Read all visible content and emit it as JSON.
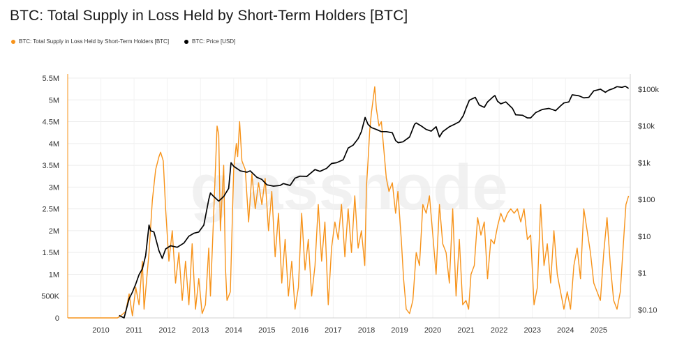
{
  "title": "BTC: Total Supply in Loss Held by Short-Term Holders [BTC]",
  "legend": [
    {
      "label": "BTC: Total Supply in Loss Held by Short-Term Holders [BTC]",
      "color": "#f7931a"
    },
    {
      "label": "BTC: Price [USD]",
      "color": "#000000"
    }
  ],
  "watermark": "glassnode",
  "chart_data": {
    "type": "line",
    "x_axis": {
      "labels": [
        "2010",
        "2011",
        "2012",
        "2013",
        "2014",
        "2015",
        "2016",
        "2017",
        "2018",
        "2019",
        "2020",
        "2021",
        "2022",
        "2023",
        "2024",
        "2025"
      ],
      "range": [
        2009.0,
        2025.95
      ]
    },
    "y_left": {
      "labels": [
        "0",
        "500K",
        "1M",
        "1.5M",
        "2M",
        "2.5M",
        "3M",
        "3.5M",
        "4M",
        "4.5M",
        "5M",
        "5.5M"
      ],
      "range": [
        0,
        5500000
      ]
    },
    "y_right": {
      "labels": [
        "$0.10",
        "$1",
        "$10",
        "$100",
        "$1k",
        "$10k",
        "$100k"
      ],
      "scale": "log",
      "range": [
        0.06,
        200000
      ]
    },
    "grid": true,
    "series": [
      {
        "name": "BTC: Total Supply in Loss Held by Short-Term Holders [BTC]",
        "color": "#f7931a",
        "axis": "left",
        "points": [
          [
            2009.0,
            0
          ],
          [
            2010.5,
            0
          ],
          [
            2010.6,
            50000
          ],
          [
            2010.75,
            150000
          ],
          [
            2010.85,
            550000
          ],
          [
            2010.95,
            50000
          ],
          [
            2011.05,
            700000
          ],
          [
            2011.15,
            300000
          ],
          [
            2011.25,
            1300000
          ],
          [
            2011.3,
            200000
          ],
          [
            2011.45,
            1500000
          ],
          [
            2011.55,
            2700000
          ],
          [
            2011.65,
            3400000
          ],
          [
            2011.75,
            3700000
          ],
          [
            2011.8,
            3800000
          ],
          [
            2011.88,
            3600000
          ],
          [
            2011.95,
            2500000
          ],
          [
            2012.05,
            1300000
          ],
          [
            2012.15,
            2000000
          ],
          [
            2012.25,
            800000
          ],
          [
            2012.35,
            1500000
          ],
          [
            2012.45,
            400000
          ],
          [
            2012.55,
            1300000
          ],
          [
            2012.65,
            300000
          ],
          [
            2012.75,
            1700000
          ],
          [
            2012.85,
            200000
          ],
          [
            2012.95,
            900000
          ],
          [
            2013.05,
            100000
          ],
          [
            2013.15,
            300000
          ],
          [
            2013.25,
            1600000
          ],
          [
            2013.3,
            500000
          ],
          [
            2013.4,
            2400000
          ],
          [
            2013.5,
            4400000
          ],
          [
            2013.55,
            4200000
          ],
          [
            2013.6,
            2000000
          ],
          [
            2013.7,
            3500000
          ],
          [
            2013.75,
            1200000
          ],
          [
            2013.8,
            400000
          ],
          [
            2013.9,
            600000
          ],
          [
            2014.0,
            3400000
          ],
          [
            2014.08,
            4000000
          ],
          [
            2014.12,
            3700000
          ],
          [
            2014.18,
            4500000
          ],
          [
            2014.25,
            3600000
          ],
          [
            2014.35,
            3400000
          ],
          [
            2014.45,
            2200000
          ],
          [
            2014.55,
            3300000
          ],
          [
            2014.65,
            2500000
          ],
          [
            2014.75,
            3100000
          ],
          [
            2014.85,
            2600000
          ],
          [
            2014.95,
            3200000
          ],
          [
            2015.05,
            2000000
          ],
          [
            2015.15,
            2900000
          ],
          [
            2015.25,
            1400000
          ],
          [
            2015.35,
            2400000
          ],
          [
            2015.45,
            800000
          ],
          [
            2015.55,
            1800000
          ],
          [
            2015.65,
            500000
          ],
          [
            2015.75,
            1300000
          ],
          [
            2015.85,
            200000
          ],
          [
            2015.95,
            700000
          ],
          [
            2016.05,
            2400000
          ],
          [
            2016.15,
            1100000
          ],
          [
            2016.25,
            1800000
          ],
          [
            2016.35,
            500000
          ],
          [
            2016.45,
            1200000
          ],
          [
            2016.55,
            2600000
          ],
          [
            2016.65,
            1300000
          ],
          [
            2016.75,
            2200000
          ],
          [
            2016.85,
            300000
          ],
          [
            2016.95,
            1600000
          ],
          [
            2017.05,
            2200000
          ],
          [
            2017.15,
            1800000
          ],
          [
            2017.25,
            2600000
          ],
          [
            2017.35,
            1400000
          ],
          [
            2017.45,
            2500000
          ],
          [
            2017.55,
            1500000
          ],
          [
            2017.65,
            2800000
          ],
          [
            2017.75,
            1600000
          ],
          [
            2017.85,
            2000000
          ],
          [
            2017.95,
            1200000
          ],
          [
            2018.0,
            3000000
          ],
          [
            2018.05,
            3600000
          ],
          [
            2018.1,
            4300000
          ],
          [
            2018.15,
            4700000
          ],
          [
            2018.2,
            5000000
          ],
          [
            2018.25,
            5300000
          ],
          [
            2018.3,
            4800000
          ],
          [
            2018.38,
            4400000
          ],
          [
            2018.45,
            4500000
          ],
          [
            2018.52,
            3900000
          ],
          [
            2018.6,
            3200000
          ],
          [
            2018.68,
            2900000
          ],
          [
            2018.78,
            3100000
          ],
          [
            2018.88,
            2400000
          ],
          [
            2018.95,
            2900000
          ],
          [
            2019.05,
            1800000
          ],
          [
            2019.12,
            900000
          ],
          [
            2019.2,
            200000
          ],
          [
            2019.3,
            100000
          ],
          [
            2019.4,
            400000
          ],
          [
            2019.5,
            1500000
          ],
          [
            2019.6,
            1200000
          ],
          [
            2019.7,
            2600000
          ],
          [
            2019.8,
            2400000
          ],
          [
            2019.9,
            2800000
          ],
          [
            2020.0,
            1900000
          ],
          [
            2020.1,
            1000000
          ],
          [
            2020.2,
            2600000
          ],
          [
            2020.3,
            1700000
          ],
          [
            2020.4,
            1500000
          ],
          [
            2020.5,
            800000
          ],
          [
            2020.6,
            2500000
          ],
          [
            2020.7,
            500000
          ],
          [
            2020.8,
            1800000
          ],
          [
            2020.9,
            300000
          ],
          [
            2021.0,
            400000
          ],
          [
            2021.08,
            200000
          ],
          [
            2021.15,
            1000000
          ],
          [
            2021.25,
            1200000
          ],
          [
            2021.35,
            2300000
          ],
          [
            2021.45,
            1900000
          ],
          [
            2021.55,
            2200000
          ],
          [
            2021.65,
            900000
          ],
          [
            2021.75,
            1800000
          ],
          [
            2021.85,
            1700000
          ],
          [
            2021.95,
            2100000
          ],
          [
            2022.05,
            2400000
          ],
          [
            2022.15,
            2200000
          ],
          [
            2022.25,
            2400000
          ],
          [
            2022.35,
            2500000
          ],
          [
            2022.45,
            2400000
          ],
          [
            2022.55,
            2500000
          ],
          [
            2022.65,
            2200000
          ],
          [
            2022.75,
            2500000
          ],
          [
            2022.85,
            1800000
          ],
          [
            2022.95,
            1900000
          ],
          [
            2023.05,
            300000
          ],
          [
            2023.15,
            700000
          ],
          [
            2023.25,
            2600000
          ],
          [
            2023.35,
            1200000
          ],
          [
            2023.45,
            1700000
          ],
          [
            2023.55,
            800000
          ],
          [
            2023.65,
            2000000
          ],
          [
            2023.75,
            1000000
          ],
          [
            2023.85,
            600000
          ],
          [
            2023.95,
            200000
          ],
          [
            2024.05,
            600000
          ],
          [
            2024.15,
            200000
          ],
          [
            2024.25,
            1200000
          ],
          [
            2024.35,
            1600000
          ],
          [
            2024.45,
            900000
          ],
          [
            2024.55,
            2500000
          ],
          [
            2024.65,
            2000000
          ],
          [
            2024.75,
            1500000
          ],
          [
            2024.85,
            800000
          ],
          [
            2024.95,
            600000
          ],
          [
            2025.05,
            400000
          ],
          [
            2025.15,
            1500000
          ],
          [
            2025.25,
            2300000
          ],
          [
            2025.35,
            1200000
          ],
          [
            2025.45,
            400000
          ],
          [
            2025.55,
            200000
          ],
          [
            2025.65,
            600000
          ],
          [
            2025.75,
            1800000
          ],
          [
            2025.82,
            2600000
          ],
          [
            2025.9,
            2800000
          ]
        ]
      },
      {
        "name": "BTC: Price [USD]",
        "color": "#000000",
        "axis": "right",
        "points": [
          [
            2010.55,
            0.07
          ],
          [
            2010.7,
            0.06
          ],
          [
            2010.85,
            0.2
          ],
          [
            2010.95,
            0.3
          ],
          [
            2011.05,
            0.5
          ],
          [
            2011.15,
            0.9
          ],
          [
            2011.25,
            1.3
          ],
          [
            2011.35,
            3
          ],
          [
            2011.45,
            20
          ],
          [
            2011.5,
            14
          ],
          [
            2011.6,
            13
          ],
          [
            2011.75,
            4
          ],
          [
            2011.85,
            2.5
          ],
          [
            2011.95,
            4.5
          ],
          [
            2012.1,
            5.5
          ],
          [
            2012.3,
            5
          ],
          [
            2012.5,
            6.5
          ],
          [
            2012.65,
            10
          ],
          [
            2012.8,
            12
          ],
          [
            2012.95,
            13
          ],
          [
            2013.1,
            20
          ],
          [
            2013.25,
            100
          ],
          [
            2013.3,
            150
          ],
          [
            2013.4,
            120
          ],
          [
            2013.55,
            90
          ],
          [
            2013.7,
            120
          ],
          [
            2013.85,
            200
          ],
          [
            2013.92,
            1000
          ],
          [
            2014.0,
            800
          ],
          [
            2014.2,
            600
          ],
          [
            2014.4,
            550
          ],
          [
            2014.5,
            600
          ],
          [
            2014.7,
            400
          ],
          [
            2014.85,
            350
          ],
          [
            2015.0,
            250
          ],
          [
            2015.2,
            230
          ],
          [
            2015.4,
            240
          ],
          [
            2015.5,
            270
          ],
          [
            2015.7,
            240
          ],
          [
            2015.85,
            380
          ],
          [
            2016.0,
            430
          ],
          [
            2016.2,
            420
          ],
          [
            2016.45,
            650
          ],
          [
            2016.6,
            580
          ],
          [
            2016.8,
            700
          ],
          [
            2016.95,
            950
          ],
          [
            2017.1,
            1000
          ],
          [
            2017.3,
            1200
          ],
          [
            2017.45,
            2500
          ],
          [
            2017.6,
            3000
          ],
          [
            2017.75,
            4500
          ],
          [
            2017.85,
            7000
          ],
          [
            2017.96,
            17000
          ],
          [
            2018.05,
            11000
          ],
          [
            2018.15,
            9000
          ],
          [
            2018.3,
            8000
          ],
          [
            2018.45,
            7000
          ],
          [
            2018.6,
            7000
          ],
          [
            2018.78,
            6500
          ],
          [
            2018.88,
            4000
          ],
          [
            2018.96,
            3500
          ],
          [
            2019.1,
            3700
          ],
          [
            2019.3,
            5000
          ],
          [
            2019.45,
            11000
          ],
          [
            2019.5,
            12000
          ],
          [
            2019.65,
            10000
          ],
          [
            2019.8,
            8000
          ],
          [
            2019.95,
            7200
          ],
          [
            2020.1,
            9500
          ],
          [
            2020.2,
            5000
          ],
          [
            2020.3,
            7000
          ],
          [
            2020.5,
            9500
          ],
          [
            2020.65,
            11000
          ],
          [
            2020.8,
            13000
          ],
          [
            2020.92,
            19000
          ],
          [
            2021.0,
            30000
          ],
          [
            2021.1,
            50000
          ],
          [
            2021.28,
            60000
          ],
          [
            2021.4,
            37000
          ],
          [
            2021.55,
            32000
          ],
          [
            2021.65,
            45000
          ],
          [
            2021.8,
            60000
          ],
          [
            2021.87,
            67000
          ],
          [
            2021.95,
            47000
          ],
          [
            2022.05,
            40000
          ],
          [
            2022.2,
            45000
          ],
          [
            2022.4,
            30000
          ],
          [
            2022.5,
            20000
          ],
          [
            2022.7,
            19500
          ],
          [
            2022.85,
            16500
          ],
          [
            2022.95,
            16500
          ],
          [
            2023.1,
            23000
          ],
          [
            2023.3,
            28000
          ],
          [
            2023.5,
            30000
          ],
          [
            2023.7,
            26000
          ],
          [
            2023.85,
            35000
          ],
          [
            2023.95,
            42000
          ],
          [
            2024.1,
            45000
          ],
          [
            2024.2,
            70000
          ],
          [
            2024.4,
            66000
          ],
          [
            2024.55,
            58000
          ],
          [
            2024.7,
            60000
          ],
          [
            2024.85,
            90000
          ],
          [
            2024.96,
            95000
          ],
          [
            2025.05,
            100000
          ],
          [
            2025.2,
            82000
          ],
          [
            2025.3,
            94000
          ],
          [
            2025.45,
            105000
          ],
          [
            2025.55,
            117000
          ],
          [
            2025.7,
            112000
          ],
          [
            2025.8,
            120000
          ],
          [
            2025.9,
            105000
          ]
        ]
      }
    ]
  }
}
